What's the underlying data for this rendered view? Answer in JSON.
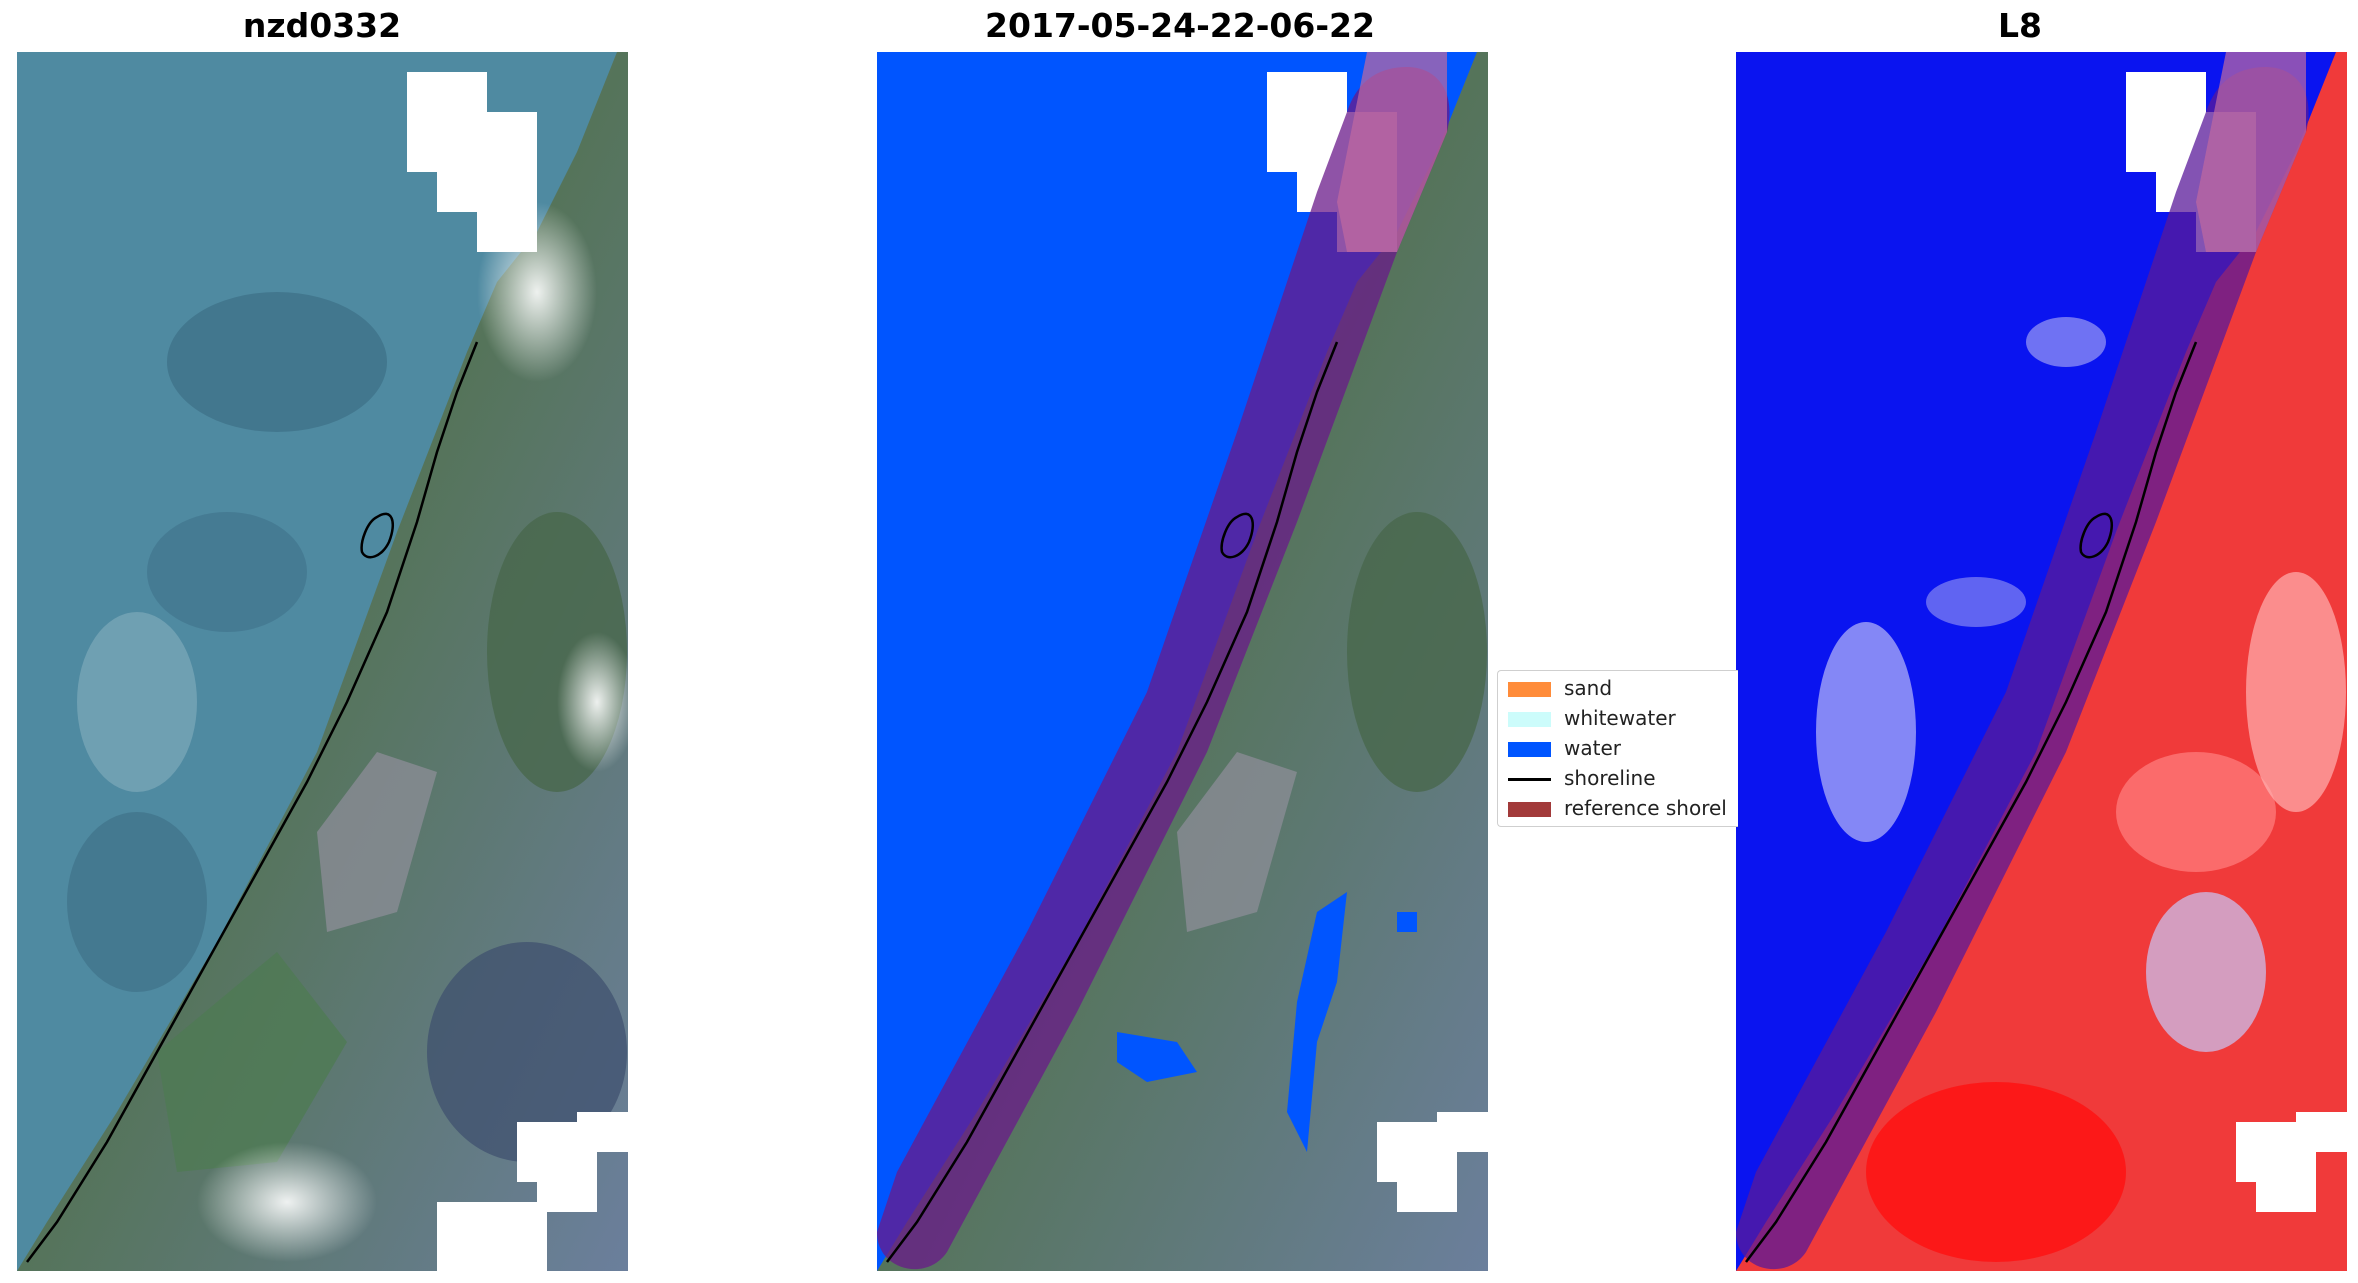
{
  "panels": [
    {
      "title": "nzd0332",
      "kind": "rgb"
    },
    {
      "title": "2017-05-24-22-06-22",
      "kind": "classified"
    },
    {
      "title": "L8",
      "kind": "index"
    }
  ],
  "legend": {
    "items": [
      {
        "label": "sand",
        "type": "patch",
        "color": "#ff8c3a"
      },
      {
        "label": "whitewater",
        "type": "patch",
        "color": "#ccfcfb"
      },
      {
        "label": "water",
        "type": "patch",
        "color": "#0055ff"
      },
      {
        "label": "shoreline",
        "type": "line",
        "color": "#000000"
      },
      {
        "label": "reference shorel",
        "type": "patch",
        "color": "#a23a3a"
      }
    ]
  },
  "colors": {
    "sea": "#4f8aa1",
    "land": "#5c7b5e",
    "water_class": "#0055ff",
    "buffer": "#8a2f86",
    "index_water": "#0a14f0",
    "index_land": "#f03030",
    "nodata": "#ffffff"
  }
}
